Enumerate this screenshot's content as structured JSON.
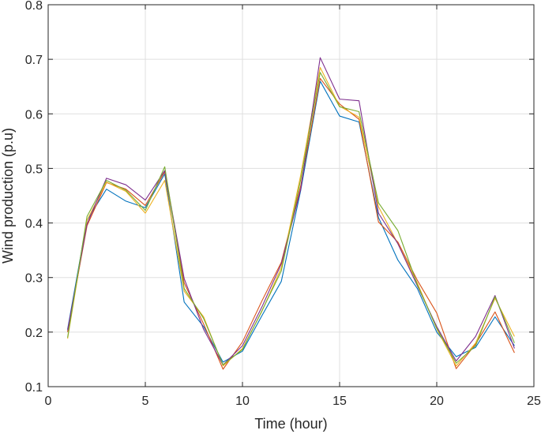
{
  "chart_data": {
    "type": "line",
    "title": "",
    "xlabel": "Time (hour)",
    "ylabel": "Wind production (p.u)",
    "xlim": [
      0,
      25
    ],
    "ylim": [
      0.1,
      0.8
    ],
    "xticks": [
      0,
      5,
      10,
      15,
      20,
      25
    ],
    "yticks": [
      0.1,
      0.2,
      0.3,
      0.4,
      0.5,
      0.6,
      0.7,
      0.8
    ],
    "xtick_labels": [
      "0",
      "5",
      "10",
      "15",
      "20",
      "25"
    ],
    "ytick_labels": [
      "0.1",
      "0.2",
      "0.3",
      "0.4",
      "0.5",
      "0.6",
      "0.7",
      "0.8"
    ],
    "grid": true,
    "x": [
      1,
      2,
      3,
      4,
      5,
      6,
      7,
      8,
      9,
      10,
      11,
      12,
      13,
      14,
      15,
      16,
      17,
      18,
      19,
      20,
      21,
      22,
      23,
      24
    ],
    "series": [
      {
        "color": "#0072BD",
        "values": [
          0.205,
          0.405,
          0.462,
          0.44,
          0.428,
          0.49,
          0.255,
          0.21,
          0.145,
          0.165,
          0.23,
          0.293,
          0.46,
          0.66,
          0.596,
          0.585,
          0.41,
          0.332,
          0.28,
          0.2,
          0.155,
          0.172,
          0.228,
          0.175
        ]
      },
      {
        "color": "#D95319",
        "values": [
          0.2,
          0.395,
          0.474,
          0.462,
          0.432,
          0.494,
          0.29,
          0.215,
          0.132,
          0.182,
          0.257,
          0.328,
          0.468,
          0.665,
          0.618,
          0.59,
          0.402,
          0.365,
          0.295,
          0.235,
          0.133,
          0.178,
          0.237,
          0.162
        ]
      },
      {
        "color": "#EDB120",
        "values": [
          0.188,
          0.405,
          0.475,
          0.458,
          0.418,
          0.478,
          0.275,
          0.228,
          0.138,
          0.17,
          0.238,
          0.318,
          0.488,
          0.685,
          0.614,
          0.594,
          0.43,
          0.362,
          0.29,
          0.206,
          0.138,
          0.18,
          0.262,
          0.192
        ]
      },
      {
        "color": "#7E2F8E",
        "values": [
          0.203,
          0.398,
          0.482,
          0.47,
          0.442,
          0.496,
          0.298,
          0.205,
          0.14,
          0.175,
          0.246,
          0.325,
          0.462,
          0.703,
          0.627,
          0.624,
          0.418,
          0.362,
          0.285,
          0.21,
          0.147,
          0.192,
          0.267,
          0.17
        ]
      },
      {
        "color": "#77AC30",
        "values": [
          0.19,
          0.412,
          0.478,
          0.46,
          0.423,
          0.503,
          0.28,
          0.225,
          0.14,
          0.168,
          0.239,
          0.312,
          0.48,
          0.676,
          0.613,
          0.604,
          0.437,
          0.386,
          0.287,
          0.207,
          0.143,
          0.175,
          0.265,
          0.18
        ]
      }
    ]
  }
}
